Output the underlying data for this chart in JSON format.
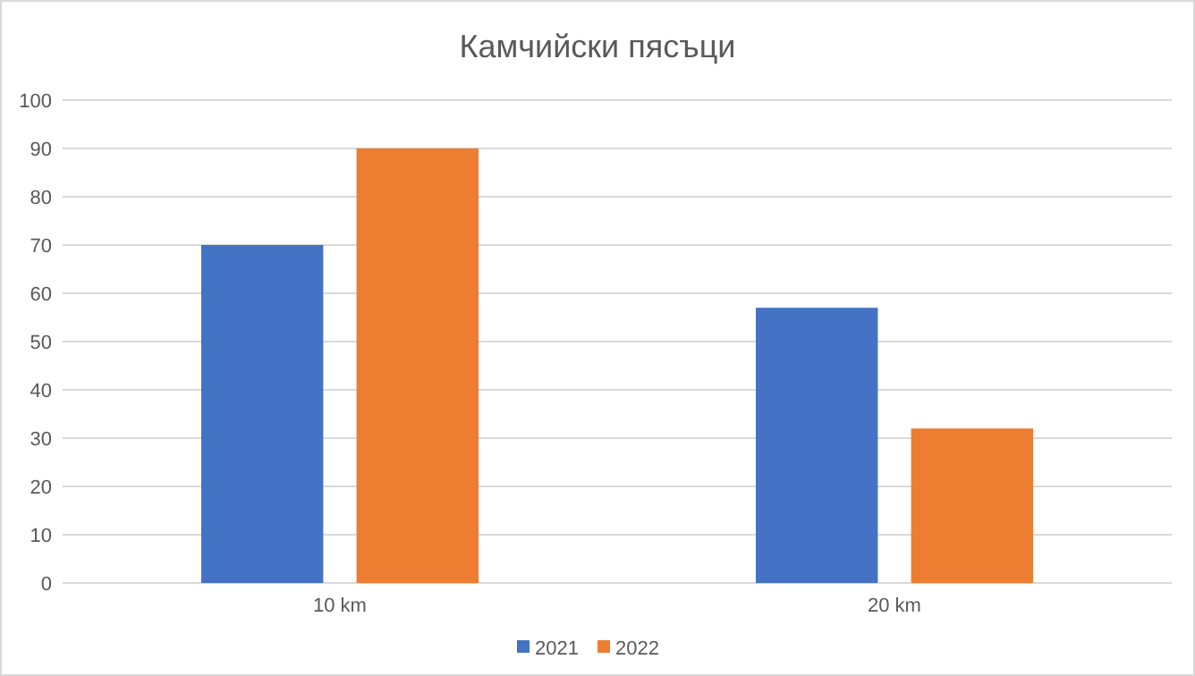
{
  "chart_data": {
    "type": "bar",
    "title": "Камчийски пясъци",
    "categories": [
      "10 km",
      "20 km"
    ],
    "series": [
      {
        "name": "2021",
        "color": "#4472c4",
        "values": [
          70,
          57
        ]
      },
      {
        "name": "2022",
        "color": "#ed7d31",
        "values": [
          90,
          32
        ]
      }
    ],
    "ylim": [
      0,
      100
    ],
    "yticks": [
      0,
      10,
      20,
      30,
      40,
      50,
      60,
      70,
      80,
      90,
      100
    ],
    "grid": "y",
    "legend": "bottom"
  }
}
